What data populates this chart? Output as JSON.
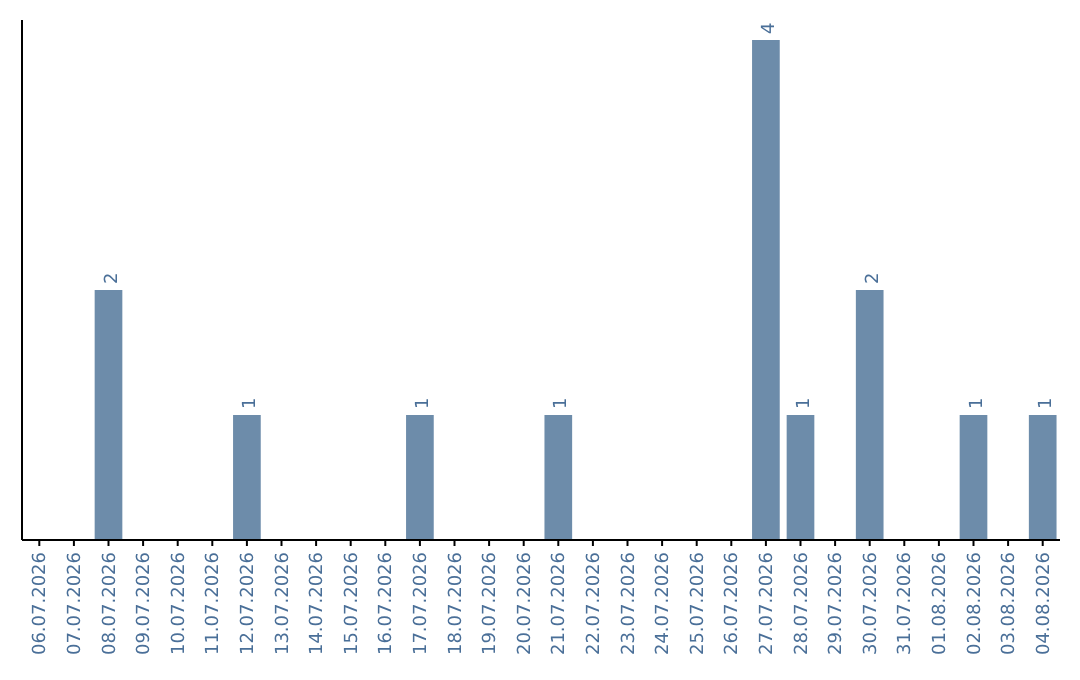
{
  "chart_data": {
    "type": "bar",
    "categories": [
      "06.07.2026",
      "07.07.2026",
      "08.07.2026",
      "09.07.2026",
      "10.07.2026",
      "11.07.2026",
      "12.07.2026",
      "13.07.2026",
      "14.07.2026",
      "15.07.2026",
      "16.07.2026",
      "17.07.2026",
      "18.07.2026",
      "19.07.2026",
      "20.07.2026",
      "21.07.2026",
      "22.07.2026",
      "23.07.2026",
      "24.07.2026",
      "25.07.2026",
      "26.07.2026",
      "27.07.2026",
      "28.07.2026",
      "29.07.2026",
      "30.07.2026",
      "31.07.2026",
      "01.08.2026",
      "02.08.2026",
      "03.08.2026",
      "04.08.2026"
    ],
    "values": [
      0,
      0,
      2,
      0,
      0,
      0,
      1,
      0,
      0,
      0,
      0,
      1,
      0,
      0,
      0,
      1,
      0,
      0,
      0,
      0,
      0,
      4,
      1,
      0,
      2,
      0,
      0,
      1,
      0,
      1
    ],
    "value_labels": [
      null,
      null,
      "2",
      null,
      null,
      null,
      "1",
      null,
      null,
      null,
      null,
      "1",
      null,
      null,
      null,
      "1",
      null,
      null,
      null,
      null,
      null,
      "4",
      "1",
      null,
      "2",
      null,
      null,
      "1",
      null,
      "1"
    ],
    "color": "#6d8caa"
  }
}
